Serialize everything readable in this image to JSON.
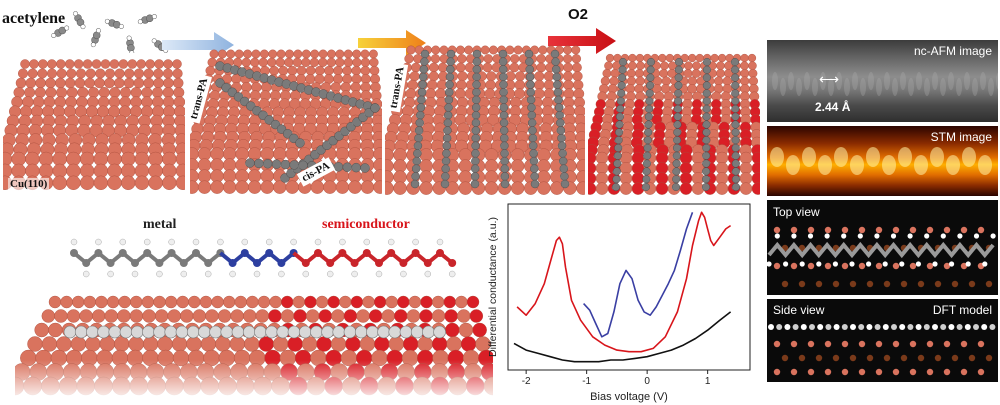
{
  "labels": {
    "acetylene": "acetylene",
    "o2": "O2",
    "substrate": "Cu(110)",
    "trans_pa_1": "trans-PA",
    "cis_pa": "cis-PA",
    "trans_pa_2": "trans-PA",
    "metal": "metal",
    "semiconductor": "semiconductor"
  },
  "right_panels": {
    "afm_title": "nc-AFM image",
    "afm_scale": "2.44 Å",
    "stm_title": "STM image",
    "top_view": "Top view",
    "side_view": "Side view",
    "dft_model": "DFT model"
  },
  "colors": {
    "copper": "#d9735e",
    "oxygen": "#d91f26",
    "carbon": "#7a7a7a",
    "nitrogen": "#2d3fa0",
    "arrow_blue": "#a9c6e8",
    "arrow_orange": "#f2a11d",
    "arrow_red": "#d8151b"
  },
  "chart_data": {
    "type": "line",
    "xlabel": "Bias voltage (V)",
    "ylabel": "Differential conductance (a.u.)",
    "xlim": [
      -2.3,
      1.7
    ],
    "ylim": [
      0,
      1
    ],
    "x_ticks": [
      "-2",
      "-1",
      "0",
      "1"
    ],
    "series": [
      {
        "color": "#d8151b",
        "x": [
          -2.15,
          -2.0,
          -1.85,
          -1.7,
          -1.6,
          -1.5,
          -1.45,
          -1.4,
          -1.35,
          -1.25,
          -1.1,
          -0.9,
          -0.7,
          -0.5,
          -0.3,
          -0.1,
          0.1,
          0.3,
          0.5,
          0.65,
          0.75,
          0.85,
          0.9,
          0.95,
          1.0,
          1.05,
          1.1,
          1.2,
          1.3,
          1.38
        ],
        "y": [
          0.38,
          0.33,
          0.4,
          0.52,
          0.65,
          0.78,
          0.8,
          0.76,
          0.62,
          0.42,
          0.3,
          0.2,
          0.15,
          0.12,
          0.11,
          0.11,
          0.13,
          0.2,
          0.35,
          0.55,
          0.75,
          0.9,
          0.95,
          0.92,
          0.85,
          0.78,
          0.75,
          0.8,
          0.85,
          0.87
        ]
      },
      {
        "color": "#3a3fa3",
        "x": [
          -1.05,
          -0.95,
          -0.85,
          -0.75,
          -0.65,
          -0.55,
          -0.45,
          -0.35,
          -0.25,
          -0.15,
          -0.05,
          0.05,
          0.15,
          0.25,
          0.35,
          0.45,
          0.55,
          0.65,
          0.75
        ],
        "y": [
          0.4,
          0.36,
          0.28,
          0.2,
          0.22,
          0.35,
          0.52,
          0.6,
          0.55,
          0.42,
          0.35,
          0.33,
          0.38,
          0.45,
          0.52,
          0.6,
          0.72,
          0.85,
          0.95
        ]
      },
      {
        "color": "#111111",
        "x": [
          -2.2,
          -2.0,
          -1.8,
          -1.6,
          -1.4,
          -1.2,
          -1.0,
          -0.8,
          -0.6,
          -0.4,
          -0.2,
          0.0,
          0.2,
          0.4,
          0.6,
          0.8,
          1.0,
          1.2,
          1.38
        ],
        "y": [
          0.16,
          0.12,
          0.1,
          0.08,
          0.06,
          0.05,
          0.05,
          0.05,
          0.06,
          0.06,
          0.07,
          0.08,
          0.1,
          0.12,
          0.15,
          0.19,
          0.24,
          0.3,
          0.35
        ]
      }
    ]
  }
}
